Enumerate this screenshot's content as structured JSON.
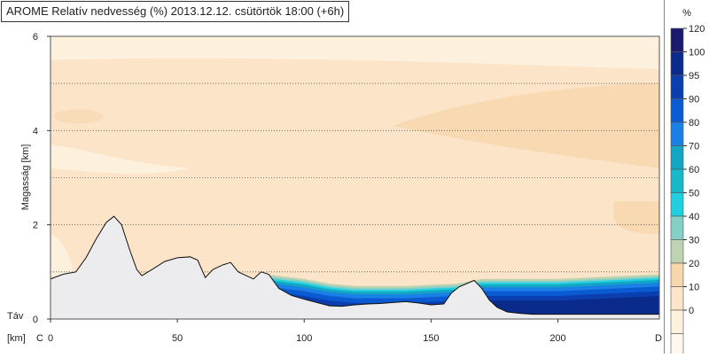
{
  "title": "AROME Relatív nedvesség (%) 2013.12.12. csütörtök 18:00 (+6h)",
  "chart_data": {
    "type": "heatmap",
    "title": "AROME Relatív nedvesség (%) 2013.12.12. csütörtök 18:00 (+6h)",
    "ylabel": "Magasság [km]",
    "xunit_label": "[km]",
    "xrange_label": "Táv",
    "start_label": "C",
    "end_label": "D",
    "xlim": [
      0,
      240
    ],
    "ylim": [
      0,
      6
    ],
    "x_ticks": [
      0,
      50,
      100,
      150,
      200
    ],
    "y_ticks": [
      0,
      2,
      4,
      6
    ],
    "gridlines_y": [
      1,
      2,
      3,
      4,
      5
    ],
    "legend": {
      "unit": "%",
      "levels": [
        "120",
        "100",
        "95",
        "90",
        "80",
        "70",
        "60",
        "50",
        "40",
        "30",
        "20",
        "10",
        "0"
      ],
      "colors": [
        "#1a1a6e",
        "#0a2a8c",
        "#0b3fb0",
        "#0a5bd2",
        "#1a80e6",
        "#12a6c4",
        "#16b9c9",
        "#20cfe0",
        "#84d0c6",
        "#bed3b1",
        "#f7d6ac",
        "#fbe4c8",
        "#fdf0dd",
        "#fef8ee"
      ]
    },
    "terrain": {
      "x": [
        0,
        5,
        10,
        14,
        18,
        22,
        25,
        28,
        31,
        34,
        36,
        40,
        45,
        50,
        55,
        58,
        61,
        64,
        68,
        71,
        74,
        78,
        80,
        83,
        86,
        90,
        95,
        100,
        105,
        110,
        115,
        120,
        125,
        130,
        135,
        140,
        145,
        150,
        155,
        158,
        161,
        164,
        167,
        170,
        173,
        176,
        180,
        185,
        190,
        200,
        210,
        220,
        230,
        240
      ],
      "y": [
        0.85,
        0.95,
        1.0,
        1.3,
        1.7,
        2.05,
        2.18,
        2.0,
        1.5,
        1.05,
        0.92,
        1.05,
        1.22,
        1.3,
        1.32,
        1.25,
        0.88,
        1.05,
        1.15,
        1.2,
        1.0,
        0.9,
        0.85,
        1.0,
        0.95,
        0.65,
        0.5,
        0.42,
        0.35,
        0.28,
        0.27,
        0.3,
        0.32,
        0.33,
        0.35,
        0.37,
        0.34,
        0.3,
        0.32,
        0.55,
        0.68,
        0.75,
        0.82,
        0.65,
        0.4,
        0.25,
        0.15,
        0.12,
        0.1,
        0.1,
        0.1,
        0.1,
        0.1,
        0.1
      ]
    },
    "moist_layer": {
      "x": [
        85,
        100,
        110,
        120,
        140,
        160,
        170,
        180,
        200,
        220,
        240
      ],
      "top": [
        0.95,
        0.85,
        0.75,
        0.7,
        0.7,
        0.75,
        0.85,
        0.85,
        0.85,
        0.9,
        0.95
      ]
    }
  }
}
